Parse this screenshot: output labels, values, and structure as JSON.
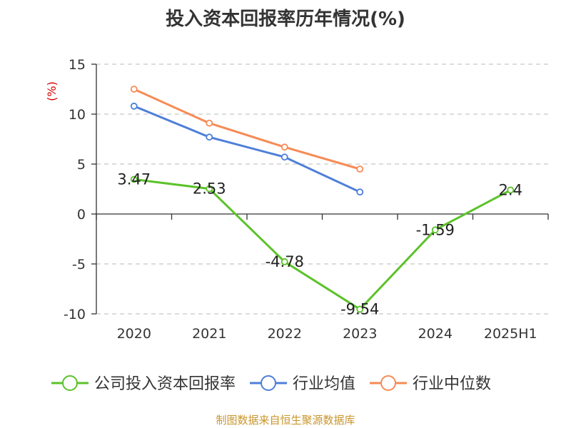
{
  "chart_data": {
    "type": "line",
    "title": "投入资本回报率历年情况(%)",
    "ylabel": "(%)",
    "categories": [
      "2020",
      "2021",
      "2022",
      "2023",
      "2024",
      "2025H1"
    ],
    "ylim": [
      -10,
      15
    ],
    "yticks": [
      15,
      10,
      5,
      0,
      -5,
      -10
    ],
    "grid": true,
    "legend_position": "bottom",
    "series": [
      {
        "name": "公司投入资本回报率",
        "color": "#5cc22a",
        "values": [
          3.47,
          2.53,
          -4.78,
          -9.54,
          -1.59,
          2.4
        ],
        "labels": [
          "3.47",
          "2.53",
          "-4.78",
          "-9.54",
          "-1.59",
          "2.4"
        ]
      },
      {
        "name": "行业均值",
        "color": "#4e7fd9",
        "values": [
          10.8,
          7.7,
          5.7,
          2.2,
          null,
          null
        ]
      },
      {
        "name": "行业中位数",
        "color": "#f68b55",
        "values": [
          12.5,
          9.1,
          6.7,
          4.5,
          null,
          null
        ]
      }
    ]
  },
  "source": "制图数据来自恒生聚源数据库"
}
